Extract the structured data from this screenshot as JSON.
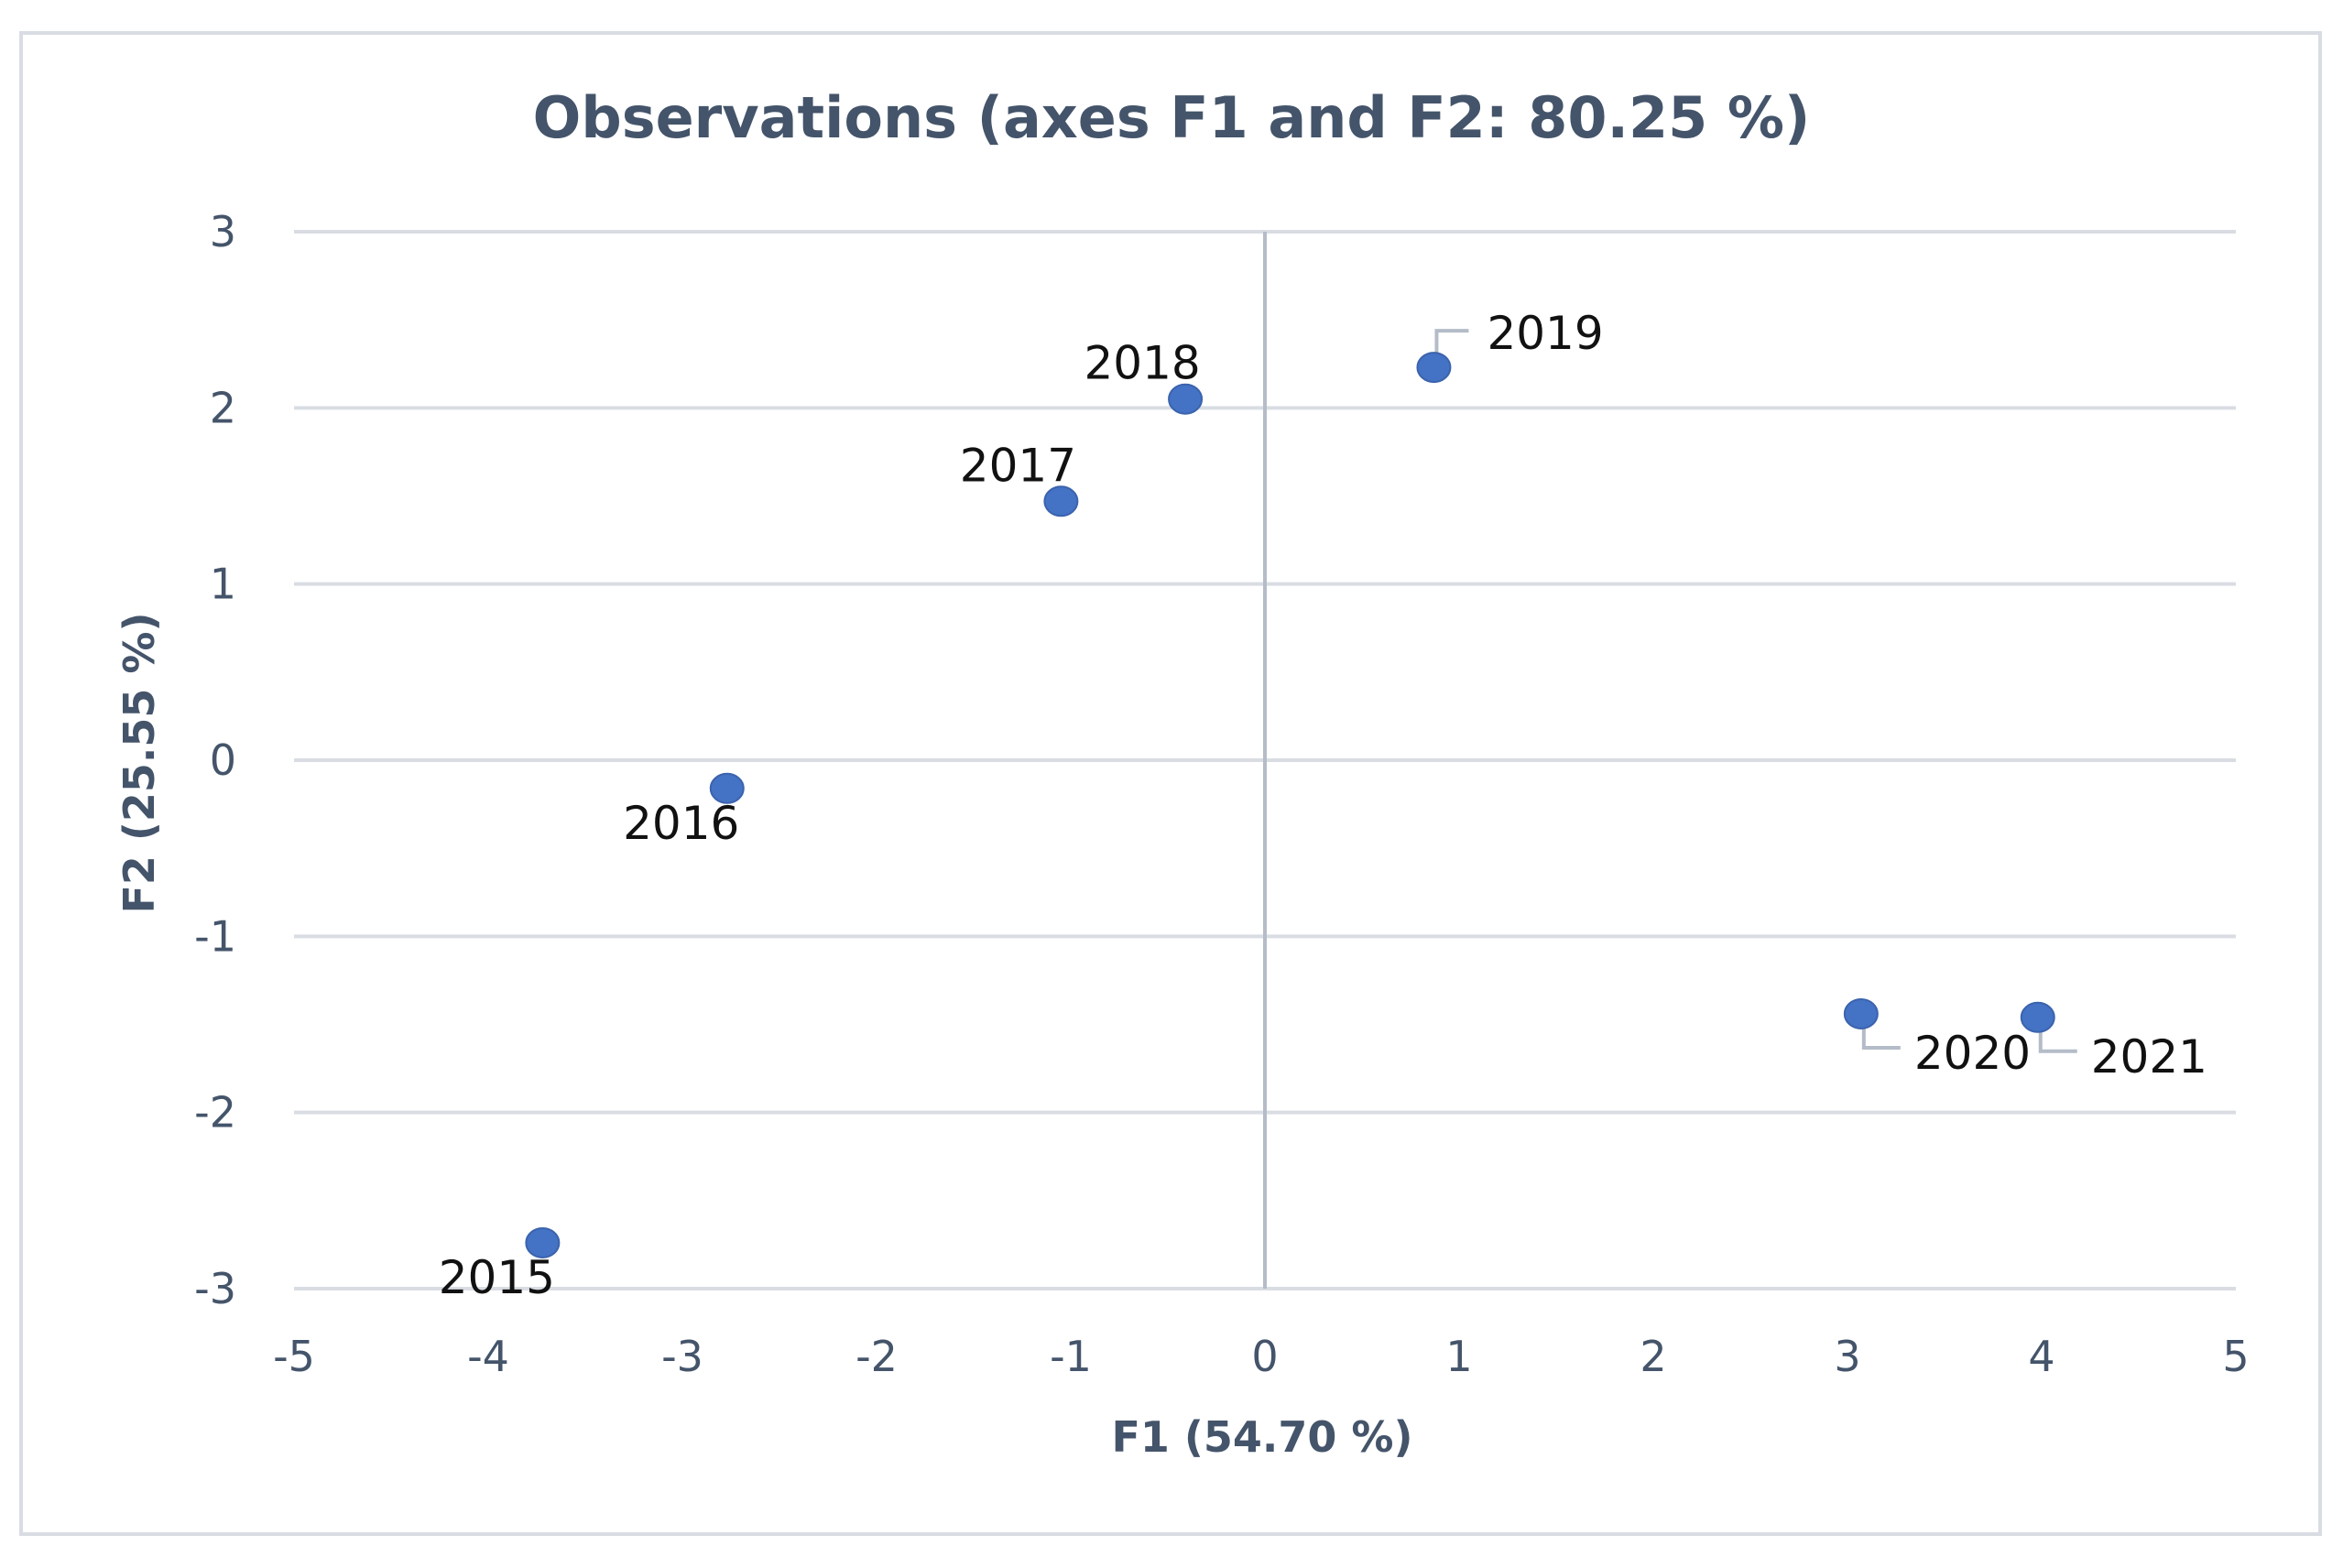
{
  "chart_data": {
    "type": "scatter",
    "title": "Observations (axes F1 and F2: 80.25 %)",
    "xlabel": "F1 (54.70 %)",
    "ylabel": "F2 (25.55 %)",
    "xlim": [
      -5,
      5
    ],
    "ylim": [
      -3,
      3
    ],
    "x_ticks": [
      -5,
      -4,
      -3,
      -2,
      -1,
      0,
      1,
      2,
      3,
      4,
      5
    ],
    "y_ticks": [
      -3,
      -2,
      -1,
      0,
      1,
      2,
      3
    ],
    "grid": "horizontal",
    "marker_color": "#4472c4",
    "points": [
      {
        "label": "2015",
        "x": -3.72,
        "y": -2.74
      },
      {
        "label": "2016",
        "x": -2.77,
        "y": -0.16
      },
      {
        "label": "2017",
        "x": -1.05,
        "y": 1.47
      },
      {
        "label": "2018",
        "x": -0.41,
        "y": 2.05
      },
      {
        "label": "2019",
        "x": 0.87,
        "y": 2.23
      },
      {
        "label": "2020",
        "x": 3.07,
        "y": -1.44
      },
      {
        "label": "2021",
        "x": 3.98,
        "y": -1.46
      }
    ]
  }
}
